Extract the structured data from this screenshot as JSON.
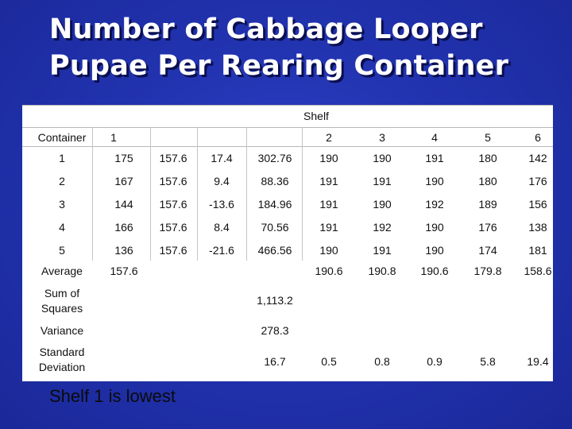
{
  "slide": {
    "title_line1": "Number of Cabbage Looper",
    "title_line2": "Pupae Per Rearing Container",
    "note": "Shelf 1 is lowest"
  },
  "table": {
    "shelf_header": "Shelf",
    "corner_label": "Container",
    "shelf_numbers": [
      "1",
      "2",
      "3",
      "4",
      "5",
      "6"
    ],
    "rows": [
      [
        "1",
        "175",
        "157.6",
        "17.4",
        "302.76",
        "190",
        "190",
        "191",
        "180",
        "142"
      ],
      [
        "2",
        "167",
        "157.6",
        "9.4",
        "88.36",
        "191",
        "191",
        "190",
        "180",
        "176"
      ],
      [
        "3",
        "144",
        "157.6",
        "-13.6",
        "184.96",
        "191",
        "190",
        "192",
        "189",
        "156"
      ],
      [
        "4",
        "166",
        "157.6",
        "8.4",
        "70.56",
        "191",
        "192",
        "190",
        "176",
        "138"
      ],
      [
        "5",
        "136",
        "157.6",
        "-21.6",
        "466.56",
        "190",
        "191",
        "190",
        "174",
        "181"
      ]
    ],
    "average": {
      "label": "Average",
      "shelf1": "157.6",
      "others": [
        "190.6",
        "190.8",
        "190.6",
        "179.8",
        "158.6"
      ]
    },
    "sum_of_squares": {
      "label": "Sum of Squares",
      "value": "1,113.2"
    },
    "variance": {
      "label": "Variance",
      "value": "278.3"
    },
    "std_dev": {
      "label": "Standard Deviation",
      "values": [
        "16.7",
        "0.5",
        "0.8",
        "0.9",
        "5.8",
        "19.4"
      ]
    }
  }
}
